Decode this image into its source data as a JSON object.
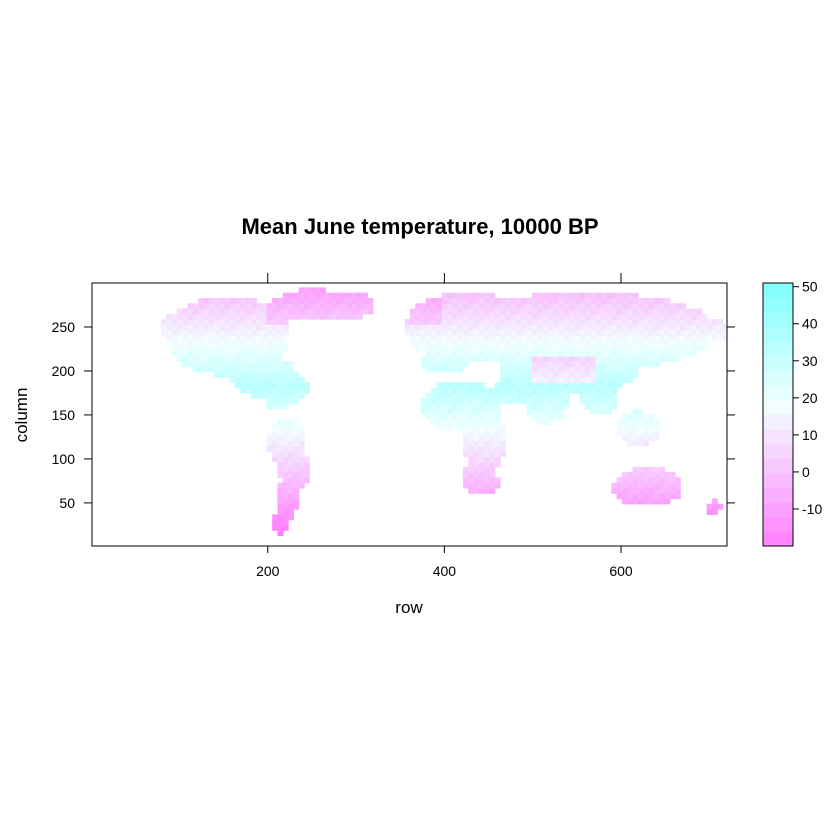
{
  "chart_data": {
    "type": "heatmap",
    "title": "Mean June temperature, 10000 BP",
    "xlabel": "row",
    "ylabel": "column",
    "xlim": [
      1,
      720
    ],
    "ylim": [
      1,
      300
    ],
    "x_ticks": [
      200,
      400,
      600
    ],
    "y_ticks": [
      50,
      100,
      150,
      200,
      250
    ],
    "colorbar": {
      "range": [
        -20,
        51
      ],
      "ticks": [
        -10,
        0,
        10,
        20,
        30,
        40,
        50
      ],
      "low_color": "#ff80ff",
      "mid_color": "#f2ffff",
      "high_color": "#80ffff"
    }
  }
}
